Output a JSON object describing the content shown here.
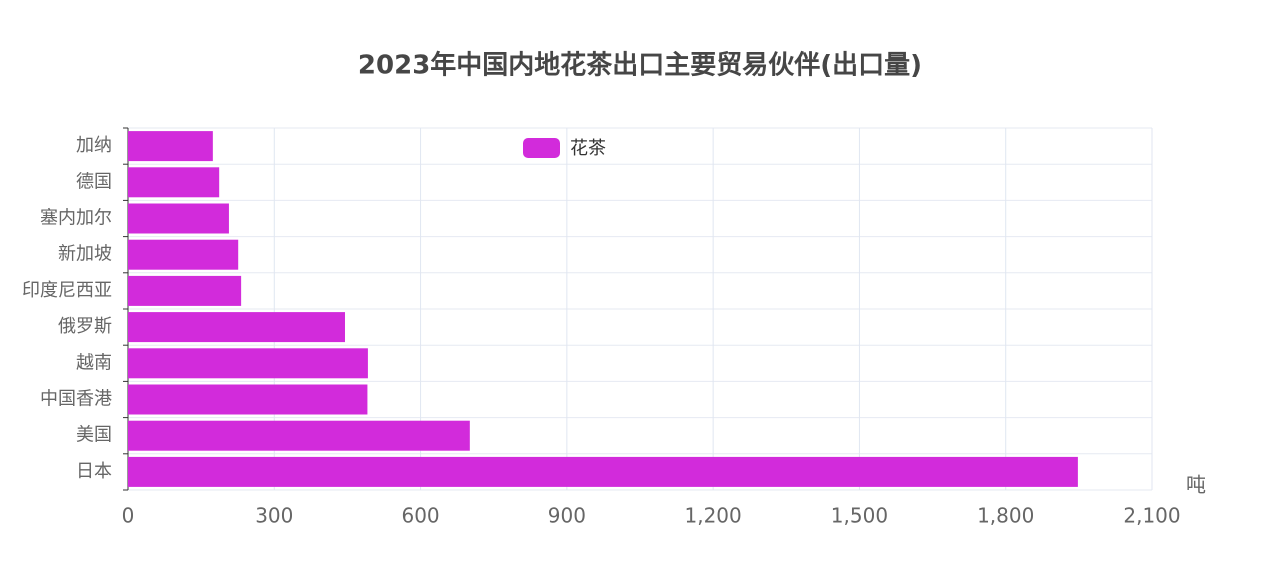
{
  "chart_data": {
    "type": "hbar",
    "title": "2023年中国内地花茶出口主要贸易伙伴(出口量)",
    "categories": [
      "加纳",
      "德国",
      "塞内加尔",
      "新加坡",
      "印度尼西亚",
      "俄罗斯",
      "越南",
      "中国香港",
      "美国",
      "日本"
    ],
    "series": [
      {
        "name": "花茶",
        "color": "#d22bdb",
        "values": [
          174,
          187,
          207,
          226,
          232,
          445,
          492,
          491,
          701,
          1948
        ]
      }
    ],
    "x_label": "吨",
    "xlim": [
      0,
      2100
    ],
    "xticks": [
      0,
      300,
      600,
      900,
      {
        "value": 1200,
        "label": "1,200"
      },
      {
        "value": 1500,
        "label": "1,500"
      },
      {
        "value": 1800,
        "label": "1,800"
      },
      {
        "value": 2100,
        "label": "2,100"
      }
    ],
    "grid": true,
    "legend": "top"
  }
}
